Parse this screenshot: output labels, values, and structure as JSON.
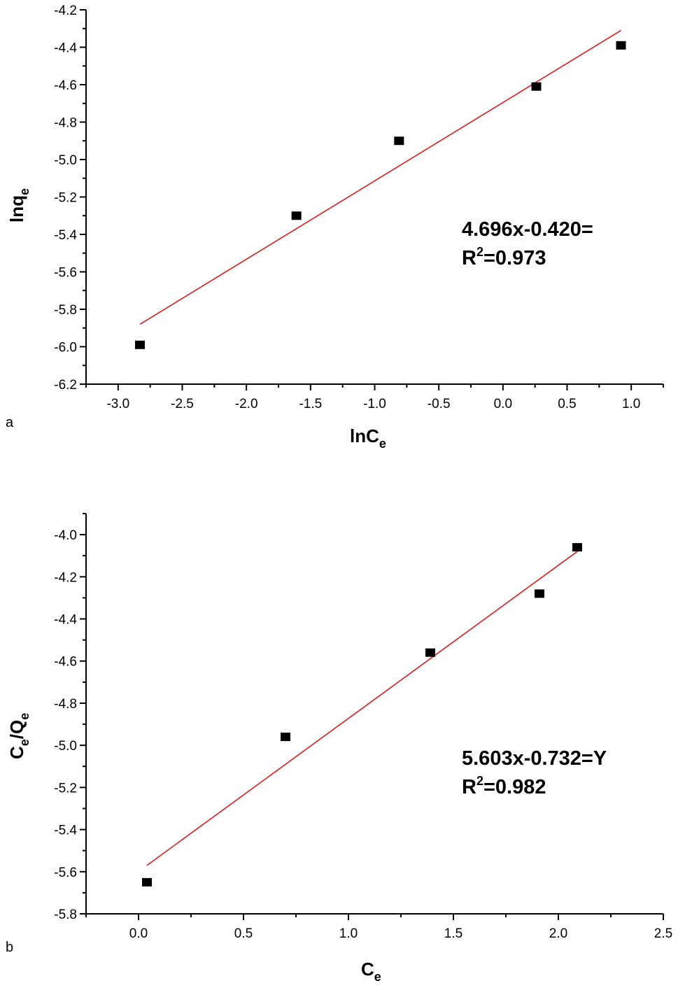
{
  "chart_data": [
    {
      "type": "scatter",
      "panel_label": "a",
      "xlabel_main": "lnC",
      "xlabel_sub": "e",
      "ylabel_main": "lnq",
      "ylabel_sub": "e",
      "xlim": [
        -3.25,
        1.25
      ],
      "ylim": [
        -6.2,
        -4.2
      ],
      "xticks": [
        -3.0,
        -2.5,
        -2.0,
        -1.5,
        -1.0,
        -0.5,
        0.0,
        0.5,
        1.0
      ],
      "xtick_labels": [
        "-3.0",
        "-2.5",
        "-2.0",
        "-1.5",
        "-1.0",
        "-0.5",
        "0.0",
        "0.5",
        "1.0"
      ],
      "yticks": [
        -6.2,
        -6.0,
        -5.8,
        -5.6,
        -5.4,
        -5.2,
        -5.0,
        -4.8,
        -4.6,
        -4.4,
        -4.2
      ],
      "ytick_labels": [
        "-6.2",
        "-6.0",
        "-5.8",
        "-5.6",
        "-5.4",
        "-5.2",
        "-5.0",
        "-4.8",
        "-4.6",
        "-4.4",
        "-4.2"
      ],
      "points": {
        "x": [
          -2.83,
          -1.61,
          -0.81,
          0.26,
          0.92
        ],
        "y": [
          -5.99,
          -5.3,
          -4.9,
          -4.61,
          -4.39
        ]
      },
      "fit_line": {
        "x": [
          -2.83,
          0.92
        ],
        "y": [
          -5.88,
          -4.31
        ],
        "color": "#e31a1c"
      },
      "marker_color": "#000000",
      "equation": "4.696x-0.420=",
      "r2_prefix": "R",
      "r2_sup": "2",
      "r2_value": "=0.973"
    },
    {
      "type": "scatter",
      "panel_label": "b",
      "xlabel_main": "C",
      "xlabel_sub": "e",
      "ylabel_parts": [
        "C",
        "e",
        "/Q",
        "e"
      ],
      "xlim": [
        -0.25,
        2.5
      ],
      "ylim": [
        -5.8,
        -3.9
      ],
      "xticks": [
        0.0,
        0.5,
        1.0,
        1.5,
        2.0,
        2.5
      ],
      "xtick_labels": [
        "0.0",
        "0.5",
        "1.0",
        "1.5",
        "2.0",
        "2.5"
      ],
      "yticks": [
        -5.8,
        -5.6,
        -5.4,
        -5.2,
        -5.0,
        -4.8,
        -4.6,
        -4.4,
        -4.2,
        -4.0
      ],
      "ytick_labels": [
        "-5.8",
        "-5.6",
        "-5.4",
        "-5.2",
        "-5.0",
        "-4.8",
        "-4.6",
        "-4.4",
        "-4.2",
        "-4.0"
      ],
      "points": {
        "x": [
          0.04,
          0.7,
          1.39,
          1.91,
          2.09
        ],
        "y": [
          -5.65,
          -4.96,
          -4.56,
          -4.28,
          -4.06
        ]
      },
      "fit_line": {
        "x": [
          0.04,
          2.09
        ],
        "y": [
          -5.57,
          -4.08
        ],
        "color": "#e31a1c"
      },
      "marker_color": "#000000",
      "equation": "5.603x-0.732=Y",
      "r2_prefix": "R",
      "r2_sup": "2",
      "r2_value": "=0.982"
    }
  ]
}
